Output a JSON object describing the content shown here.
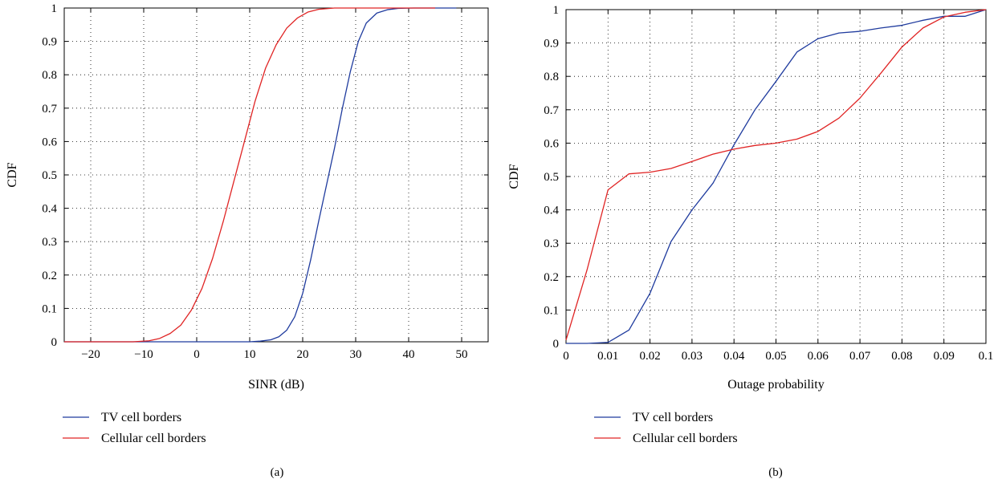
{
  "chart_data": [
    {
      "type": "line",
      "panel_label": "(a)",
      "xlabel": "SINR (dB)",
      "ylabel": "CDF",
      "xlim": [
        -25,
        55
      ],
      "ylim": [
        0,
        1
      ],
      "xticks": [
        -20,
        -10,
        0,
        10,
        20,
        30,
        40,
        50
      ],
      "xtick_labels": [
        "−20",
        "−10",
        "0",
        "10",
        "20",
        "30",
        "40",
        "50"
      ],
      "yticks": [
        0,
        0.1,
        0.2,
        0.3,
        0.4,
        0.5,
        0.6,
        0.7,
        0.8,
        0.9,
        1
      ],
      "ytick_labels": [
        "0",
        "0.1",
        "0.2",
        "0.3",
        "0.4",
        "0.5",
        "0.6",
        "0.7",
        "0.8",
        "0.9",
        "1"
      ],
      "grid": true,
      "legend_position": "below",
      "series": [
        {
          "name": "TV cell borders",
          "color": "#1f3b9e",
          "points": [
            [
              -25,
              0
            ],
            [
              10,
              0
            ],
            [
              12,
              0.002
            ],
            [
              14,
              0.006
            ],
            [
              15.5,
              0.015
            ],
            [
              17,
              0.035
            ],
            [
              18.5,
              0.075
            ],
            [
              20,
              0.145
            ],
            [
              21.5,
              0.245
            ],
            [
              23,
              0.36
            ],
            [
              24.5,
              0.47
            ],
            [
              26,
              0.58
            ],
            [
              27.5,
              0.7
            ],
            [
              29,
              0.81
            ],
            [
              30.5,
              0.9
            ],
            [
              32,
              0.955
            ],
            [
              34,
              0.985
            ],
            [
              36,
              0.995
            ],
            [
              38,
              0.999
            ],
            [
              41,
              1
            ],
            [
              49,
              1
            ]
          ]
        },
        {
          "name": "Cellular cell borders",
          "color": "#e02424",
          "points": [
            [
              -25,
              0
            ],
            [
              -12,
              0
            ],
            [
              -9,
              0.003
            ],
            [
              -7,
              0.01
            ],
            [
              -5,
              0.025
            ],
            [
              -3,
              0.05
            ],
            [
              -1,
              0.095
            ],
            [
              1,
              0.16
            ],
            [
              3,
              0.25
            ],
            [
              5,
              0.36
            ],
            [
              7,
              0.48
            ],
            [
              9,
              0.6
            ],
            [
              11,
              0.72
            ],
            [
              13,
              0.82
            ],
            [
              15,
              0.89
            ],
            [
              17,
              0.94
            ],
            [
              19,
              0.97
            ],
            [
              21,
              0.988
            ],
            [
              23,
              0.996
            ],
            [
              26,
              1
            ],
            [
              45,
              1
            ]
          ]
        }
      ]
    },
    {
      "type": "line",
      "panel_label": "(b)",
      "xlabel": "Outage probability",
      "ylabel": "CDF",
      "xlim": [
        0,
        0.1
      ],
      "ylim": [
        0,
        1
      ],
      "xticks": [
        0,
        0.01,
        0.02,
        0.03,
        0.04,
        0.05,
        0.06,
        0.07,
        0.08,
        0.09,
        0.1
      ],
      "xtick_labels": [
        "0",
        "0.01",
        "0.02",
        "0.03",
        "0.04",
        "0.05",
        "0.06",
        "0.07",
        "0.08",
        "0.09",
        "0.1"
      ],
      "yticks": [
        0,
        0.1,
        0.2,
        0.3,
        0.4,
        0.5,
        0.6,
        0.7,
        0.8,
        0.9,
        1
      ],
      "ytick_labels": [
        "0",
        "0.1",
        "0.2",
        "0.3",
        "0.4",
        "0.5",
        "0.6",
        "0.7",
        "0.8",
        "0.9",
        "1"
      ],
      "grid": true,
      "legend_position": "below",
      "series": [
        {
          "name": "TV cell borders",
          "color": "#1f3b9e",
          "points": [
            [
              0,
              0
            ],
            [
              0.005,
              0
            ],
            [
              0.01,
              0.003
            ],
            [
              0.015,
              0.04
            ],
            [
              0.02,
              0.15
            ],
            [
              0.025,
              0.305
            ],
            [
              0.03,
              0.4
            ],
            [
              0.035,
              0.48
            ],
            [
              0.04,
              0.595
            ],
            [
              0.045,
              0.7
            ],
            [
              0.05,
              0.785
            ],
            [
              0.055,
              0.873
            ],
            [
              0.06,
              0.913
            ],
            [
              0.065,
              0.93
            ],
            [
              0.07,
              0.935
            ],
            [
              0.075,
              0.945
            ],
            [
              0.08,
              0.953
            ],
            [
              0.085,
              0.968
            ],
            [
              0.09,
              0.98
            ],
            [
              0.095,
              0.98
            ],
            [
              0.1,
              1
            ]
          ]
        },
        {
          "name": "Cellular cell borders",
          "color": "#e02424",
          "points": [
            [
              0,
              0.01
            ],
            [
              0.005,
              0.22
            ],
            [
              0.01,
              0.46
            ],
            [
              0.015,
              0.508
            ],
            [
              0.02,
              0.513
            ],
            [
              0.025,
              0.524
            ],
            [
              0.03,
              0.545
            ],
            [
              0.035,
              0.567
            ],
            [
              0.04,
              0.582
            ],
            [
              0.045,
              0.593
            ],
            [
              0.05,
              0.6
            ],
            [
              0.055,
              0.612
            ],
            [
              0.06,
              0.635
            ],
            [
              0.065,
              0.675
            ],
            [
              0.07,
              0.735
            ],
            [
              0.075,
              0.81
            ],
            [
              0.08,
              0.888
            ],
            [
              0.085,
              0.945
            ],
            [
              0.09,
              0.978
            ],
            [
              0.095,
              0.992
            ],
            [
              0.1,
              1
            ]
          ]
        }
      ]
    }
  ]
}
